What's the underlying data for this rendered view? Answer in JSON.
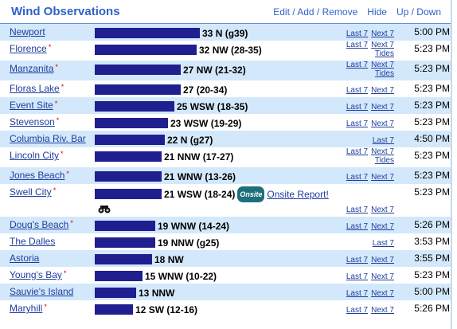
{
  "header": {
    "title": "Wind Observations",
    "links": [
      "Edit / Add / Remove",
      "Hide",
      "Up / Down"
    ]
  },
  "rows": [
    {
      "station": "Newport",
      "speed": 33,
      "detail": "N (g39)",
      "links": [
        "Last 7",
        "Next 7"
      ],
      "time": "5:00 PM"
    },
    {
      "station": "Florence",
      "asterisk": "*",
      "speed": 32,
      "detail": "NW (28-35)",
      "links": [
        "Last 7",
        "Next 7",
        "Tides"
      ],
      "time": "5:23 PM"
    },
    {
      "station": "Manzanita",
      "asterisk": "*",
      "speed": 27,
      "detail": "NW (21-32)",
      "links": [
        "Last 7",
        "Next 7",
        "Tides"
      ],
      "time": "5:23 PM"
    },
    {
      "station": "Floras Lake",
      "asterisk": "*",
      "speed": 27,
      "detail": "(20-34)",
      "links": [
        "Last 7",
        "Next 7"
      ],
      "time": "5:23 PM"
    },
    {
      "station": "Event Site",
      "asterisk": "*",
      "speed": 25,
      "detail": "WSW (18-35)",
      "links": [
        "Last 7",
        "Next 7"
      ],
      "time": "5:23 PM"
    },
    {
      "station": "Stevenson",
      "asterisk": "*",
      "speed": 23,
      "detail": "WSW (19-29)",
      "links": [
        "Last 7",
        "Next 7"
      ],
      "time": "5:23 PM"
    },
    {
      "station": "Columbia Riv. Bar",
      "speed": 22,
      "detail": "N (g27)",
      "links": [
        "Last 7"
      ],
      "time": "4:50 PM"
    },
    {
      "station": "Lincoln City",
      "asterisk": "*",
      "speed": 21,
      "detail": "NNW (17-27)",
      "links": [
        "Last 7",
        "Next 7",
        "Tides"
      ],
      "time": "5:23 PM"
    },
    {
      "station": "Jones Beach",
      "asterisk": "*",
      "speed": 21,
      "detail": "WNW (13-26)",
      "links": [
        "Last 7",
        "Next 7"
      ],
      "time": "5:23 PM"
    },
    {
      "station": "Swell City",
      "asterisk": "*",
      "speed": 21,
      "detail": "WSW (18-24)",
      "badge": "Onsite",
      "report": "Onsite Report!",
      "links": [
        "Last 7",
        "Next 7"
      ],
      "time": "5:23 PM"
    },
    {
      "station": "Doug's Beach",
      "asterisk": "*",
      "speed": 19,
      "detail": "WNW (14-24)",
      "links": [
        "Last 7",
        "Next 7"
      ],
      "time": "5:26 PM"
    },
    {
      "station": "The Dalles",
      "speed": 19,
      "detail": "NNW (g25)",
      "links": [
        "Last 7"
      ],
      "time": "3:53 PM"
    },
    {
      "station": "Astoria",
      "speed": 18,
      "detail": "NW",
      "links": [
        "Last 7",
        "Next 7"
      ],
      "time": "3:55 PM"
    },
    {
      "station": "Young's Bay",
      "asterisk": "*",
      "speed": 15,
      "detail": "WNW (10-22)",
      "links": [
        "Last 7",
        "Next 7"
      ],
      "time": "5:23 PM"
    },
    {
      "station": "Sauvie's Island",
      "speed": 13,
      "detail": "NNW",
      "links": [
        "Last 7",
        "Next 7"
      ],
      "time": "5:00 PM"
    },
    {
      "station": "Maryhill",
      "asterisk": "*",
      "speed": 12,
      "detail": "SW (12-16)",
      "links": [
        "Last 7",
        "Next 7"
      ],
      "time": "5:26 PM"
    }
  ]
}
